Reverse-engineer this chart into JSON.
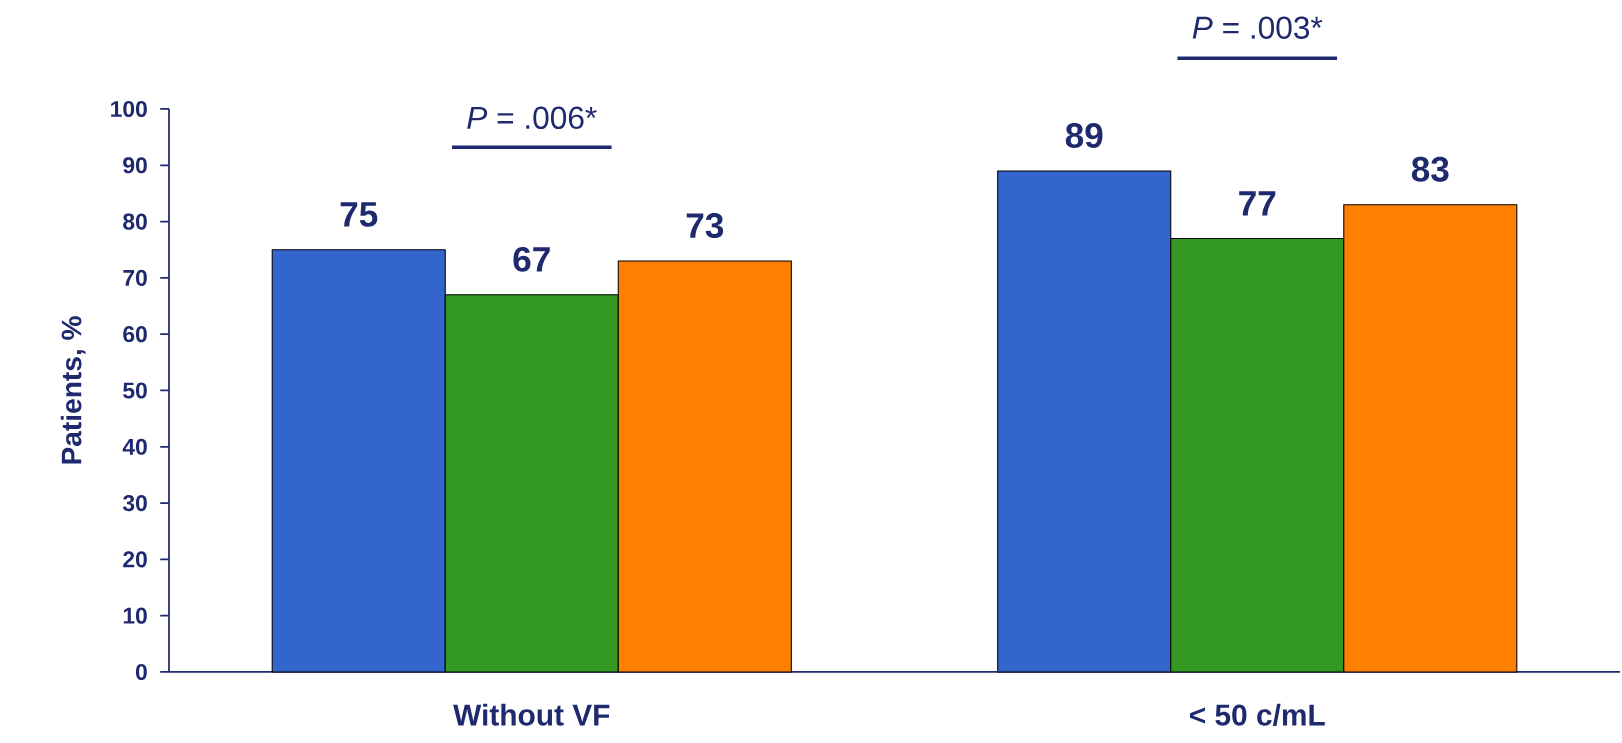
{
  "chart_data": {
    "type": "bar",
    "ylabel": "Patients, %",
    "categories": [
      "Without VF",
      "< 50 c/mL"
    ],
    "series": [
      {
        "color": "#3366cc",
        "values": [
          75,
          89
        ]
      },
      {
        "color": "#339922",
        "values": [
          67,
          77
        ]
      },
      {
        "color": "#ff7f00",
        "values": [
          73,
          83
        ]
      }
    ],
    "ylim": [
      0,
      100
    ],
    "yticks": [
      0,
      10,
      20,
      30,
      40,
      50,
      60,
      70,
      80,
      90,
      100
    ],
    "data_labels": true,
    "annotations": [
      "*P* = .006*",
      "*P* = .003*"
    ]
  }
}
